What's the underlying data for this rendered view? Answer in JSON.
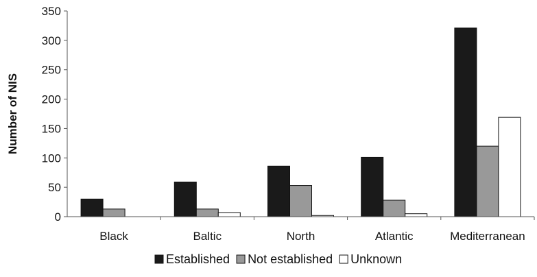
{
  "chart_data": {
    "type": "bar",
    "title": "",
    "xlabel": "",
    "ylabel": "Number of NIS",
    "ylim": [
      0,
      350
    ],
    "yticks": [
      0,
      50,
      100,
      150,
      200,
      250,
      300,
      350
    ],
    "grid": false,
    "legend_position": "bottom",
    "categories": [
      "Black",
      "Baltic",
      "North",
      "Atlantic",
      "Mediterranean"
    ],
    "series": [
      {
        "name": "Established",
        "color": "#1a1a1a",
        "values": [
          30,
          59,
          86,
          101,
          321
        ]
      },
      {
        "name": "Not established",
        "color": "#999999",
        "values": [
          13,
          13,
          53,
          28,
          120
        ]
      },
      {
        "name": "Unknown",
        "color": "#ffffff",
        "values": [
          0,
          7,
          2,
          5,
          169
        ]
      }
    ]
  }
}
